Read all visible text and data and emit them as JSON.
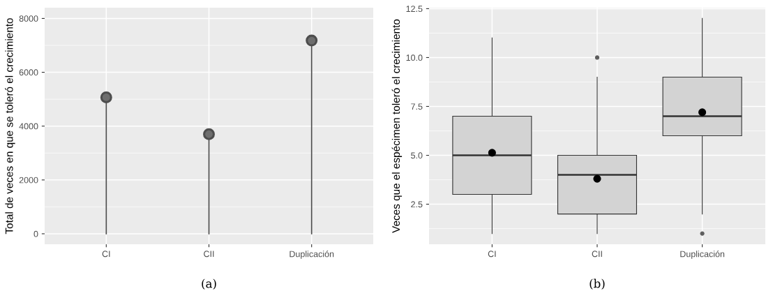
{
  "chart_data": [
    {
      "type": "lollipop",
      "ylabel": "Total de veces en que se toleró el crecimiento",
      "categories": [
        "CI",
        "CII",
        "Duplicación"
      ],
      "values": [
        5070,
        3700,
        7180
      ],
      "color": "#4d4d4d",
      "ylim": [
        -390,
        8400
      ],
      "yticks": [
        0,
        2000,
        4000,
        6000,
        8000
      ],
      "grid": true,
      "marker": "circle",
      "annotations": [
        "(a)"
      ]
    },
    {
      "type": "box",
      "ylabel": "Veces que el espécimen toleró el crecimiento",
      "categories": [
        "CI",
        "CII",
        "Duplicación"
      ],
      "color": "#d3d3d3",
      "ylim": [
        0.45,
        12.55
      ],
      "yticks": [
        {
          "value": 2.5,
          "label": "2.5"
        },
        {
          "value": 5,
          "label": "5.0"
        },
        {
          "value": 7.5,
          "label": "7.5"
        },
        {
          "value": 10,
          "label": "10.0"
        },
        {
          "value": 12.5,
          "label": "12.5"
        }
      ],
      "grid": true,
      "boxes": [
        {
          "low": 1,
          "q1": 3,
          "median": 5,
          "q3": 7,
          "high": 11,
          "mean": 5.13
        },
        {
          "low": 1,
          "q1": 2,
          "median": 4,
          "q3": 5,
          "high": 9,
          "mean": 3.8,
          "outliers": [
            10
          ]
        },
        {
          "low": 2,
          "q1": 6,
          "median": 7,
          "q3": 9,
          "high": 12,
          "mean": 7.2,
          "outliers": [
            1
          ]
        }
      ],
      "annotations": [
        "(b)"
      ]
    }
  ]
}
